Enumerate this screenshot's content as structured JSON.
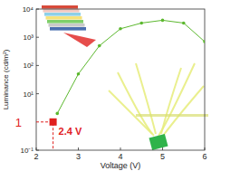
{
  "chart_data": {
    "type": "line",
    "x_label": "Voltage (V)",
    "y_label": "Luminance (cd/m²)",
    "log": "y",
    "xlim": [
      2,
      6
    ],
    "xticks": [
      2,
      3,
      4,
      5,
      6
    ],
    "ylim": [
      0.1,
      10000
    ],
    "yticks": [
      {
        "value": 0.1,
        "label": "10⁻¹"
      },
      {
        "value": 10,
        "label": "10¹"
      },
      {
        "value": 100,
        "label": "10²"
      },
      {
        "value": 1000,
        "label": "10³"
      },
      {
        "value": 10000,
        "label": "10⁴"
      }
    ],
    "series": [
      {
        "color": "#5cb82e",
        "marker": "circle",
        "x": [
          2.5,
          3,
          3.5,
          4,
          4.5,
          5,
          5.5,
          6
        ],
        "values": [
          2,
          50,
          500,
          2000,
          3200,
          4000,
          3200,
          700
        ]
      },
      {
        "color": "#e0201e",
        "marker": "square",
        "x": [
          2.4
        ],
        "values": [
          1
        ]
      }
    ],
    "annotations": [
      {
        "text": "1",
        "y": 1,
        "color": "#e0201e"
      },
      {
        "text": "2.4 V",
        "x": 2.4,
        "y": 1,
        "color": "#e0201e"
      }
    ]
  }
}
